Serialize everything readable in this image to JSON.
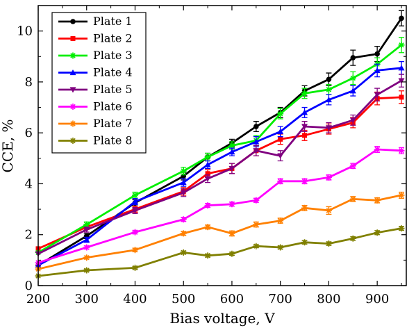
{
  "chart_data": {
    "type": "line",
    "xlabel": "Bias voltage, V",
    "ylabel": "CCE, %",
    "xlim": [
      200,
      960
    ],
    "ylim": [
      0,
      11
    ],
    "xticks": [
      200,
      300,
      400,
      500,
      600,
      700,
      800,
      900
    ],
    "yticks": [
      0,
      2,
      4,
      6,
      8,
      10
    ],
    "x": [
      200,
      300,
      400,
      500,
      550,
      600,
      650,
      700,
      750,
      800,
      850,
      900,
      950
    ],
    "grid": false,
    "legend_position": "top-left",
    "series": [
      {
        "name": "Plate 1",
        "color": "#000000",
        "marker": "circle",
        "values": [
          0.8,
          1.95,
          3.25,
          4.3,
          5.05,
          5.6,
          6.25,
          6.8,
          7.65,
          8.1,
          8.95,
          9.1,
          10.5
        ],
        "errors": [
          0.08,
          0.1,
          0.12,
          0.15,
          0.15,
          0.15,
          0.2,
          0.2,
          0.2,
          0.25,
          0.3,
          0.3,
          0.3
        ]
      },
      {
        "name": "Plate 2",
        "color": "#ff0000",
        "marker": "square",
        "values": [
          1.45,
          2.3,
          3.0,
          3.7,
          4.4,
          4.6,
          5.3,
          5.75,
          5.9,
          6.15,
          6.4,
          7.35,
          7.4
        ],
        "errors": [
          0.08,
          0.1,
          0.12,
          0.15,
          0.15,
          0.2,
          0.2,
          0.2,
          0.2,
          0.2,
          0.2,
          0.25,
          0.25
        ]
      },
      {
        "name": "Plate 3",
        "color": "#00ee00",
        "marker": "star",
        "values": [
          1.3,
          2.4,
          3.55,
          4.5,
          5.05,
          5.5,
          5.7,
          6.75,
          7.55,
          7.7,
          8.15,
          8.7,
          9.45
        ],
        "errors": [
          0.08,
          0.1,
          0.12,
          0.15,
          0.15,
          0.15,
          0.2,
          0.2,
          0.2,
          0.2,
          0.25,
          0.25,
          0.3
        ]
      },
      {
        "name": "Plate 4",
        "color": "#0000ff",
        "marker": "triangle-up",
        "values": [
          0.8,
          1.8,
          3.3,
          4.05,
          4.75,
          5.25,
          5.65,
          6.05,
          6.8,
          7.3,
          7.65,
          8.45,
          8.55
        ],
        "errors": [
          0.08,
          0.1,
          0.12,
          0.15,
          0.15,
          0.15,
          0.2,
          0.2,
          0.2,
          0.2,
          0.2,
          0.25,
          0.25
        ]
      },
      {
        "name": "Plate 5",
        "color": "#800080",
        "marker": "triangle-down",
        "values": [
          1.25,
          2.2,
          2.95,
          3.65,
          4.2,
          4.6,
          5.3,
          5.1,
          6.25,
          6.2,
          6.5,
          7.5,
          8.05
        ],
        "errors": [
          0.08,
          0.1,
          0.12,
          0.15,
          0.15,
          0.2,
          0.2,
          0.2,
          0.2,
          0.2,
          0.2,
          0.25,
          0.25
        ]
      },
      {
        "name": "Plate 6",
        "color": "#ff00ff",
        "marker": "star",
        "values": [
          0.9,
          1.5,
          2.1,
          2.6,
          3.15,
          3.2,
          3.35,
          4.1,
          4.1,
          4.25,
          4.7,
          5.35,
          5.3
        ],
        "errors": [
          0.05,
          0.06,
          0.07,
          0.08,
          0.08,
          0.08,
          0.08,
          0.1,
          0.1,
          0.1,
          0.1,
          0.12,
          0.12
        ]
      },
      {
        "name": "Plate 7",
        "color": "#ff8000",
        "marker": "star",
        "values": [
          0.65,
          1.1,
          1.4,
          2.05,
          2.3,
          2.05,
          2.4,
          2.55,
          3.05,
          2.95,
          3.4,
          3.35,
          3.55
        ],
        "errors": [
          0.05,
          0.06,
          0.07,
          0.08,
          0.08,
          0.1,
          0.1,
          0.1,
          0.1,
          0.15,
          0.1,
          0.1,
          0.12
        ]
      },
      {
        "name": "Plate 8",
        "color": "#808000",
        "marker": "star",
        "values": [
          0.38,
          0.6,
          0.7,
          1.3,
          1.18,
          1.25,
          1.55,
          1.5,
          1.7,
          1.65,
          1.85,
          2.08,
          2.25
        ],
        "errors": [
          0.04,
          0.05,
          0.05,
          0.06,
          0.06,
          0.06,
          0.06,
          0.06,
          0.07,
          0.07,
          0.07,
          0.08,
          0.08
        ]
      }
    ]
  }
}
